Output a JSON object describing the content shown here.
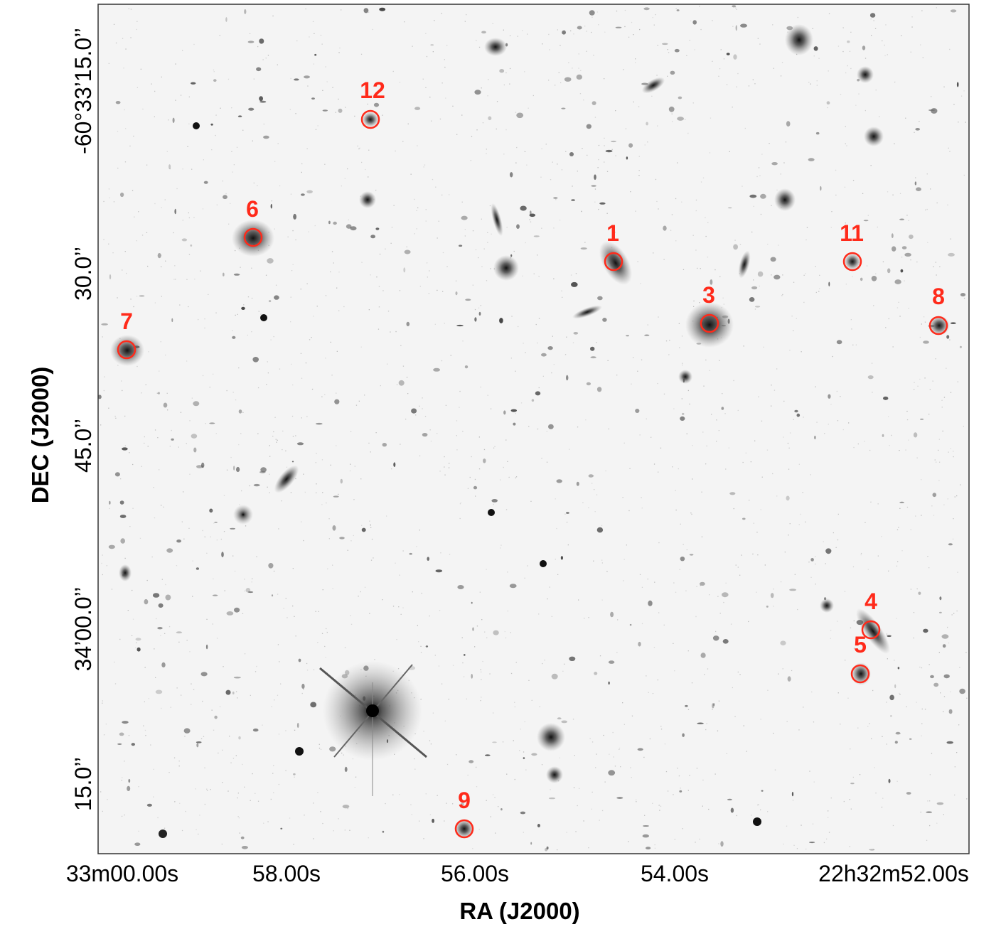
{
  "figure": {
    "x_axis_title": "RA (J2000)",
    "y_axis_title": "DEC (J2000)",
    "x_ticks": [
      "33m00.00s",
      "58.00s",
      "56.00s",
      "54.00s",
      "22h32m52.00s"
    ],
    "y_ticks": [
      "-60°33’15.0’’",
      "30.0’’",
      "45.0’’",
      "34’00.0’’",
      "15.0’’"
    ],
    "marker_color": "#ff2a1a",
    "background": "inverted greyscale deep-field image",
    "sources": [
      {
        "label": "12"
      },
      {
        "label": "6"
      },
      {
        "label": "1"
      },
      {
        "label": "11"
      },
      {
        "label": "3"
      },
      {
        "label": "8"
      },
      {
        "label": "7"
      },
      {
        "label": "4"
      },
      {
        "label": "5"
      },
      {
        "label": "9"
      }
    ]
  }
}
